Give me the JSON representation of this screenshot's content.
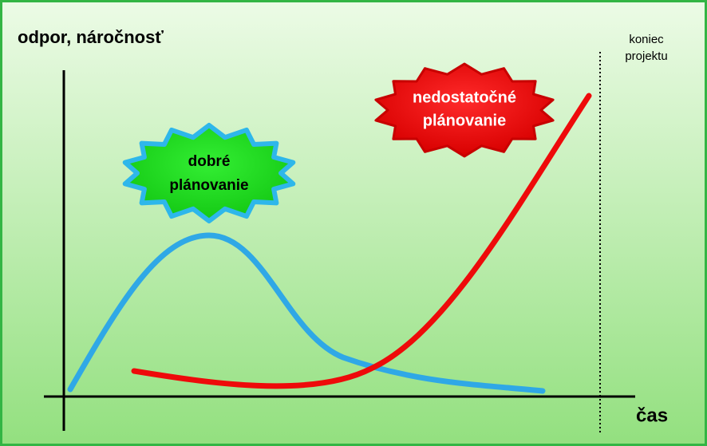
{
  "y_axis_label": "odpor, náročnosť",
  "x_axis_label": "čas",
  "end_marker": {
    "lines": [
      "koniec",
      "projektu"
    ]
  },
  "badges": [
    {
      "lines": [
        "dobré",
        "plánovanie"
      ]
    },
    {
      "lines": [
        "nedostatočné",
        "plánovanie"
      ]
    }
  ]
}
